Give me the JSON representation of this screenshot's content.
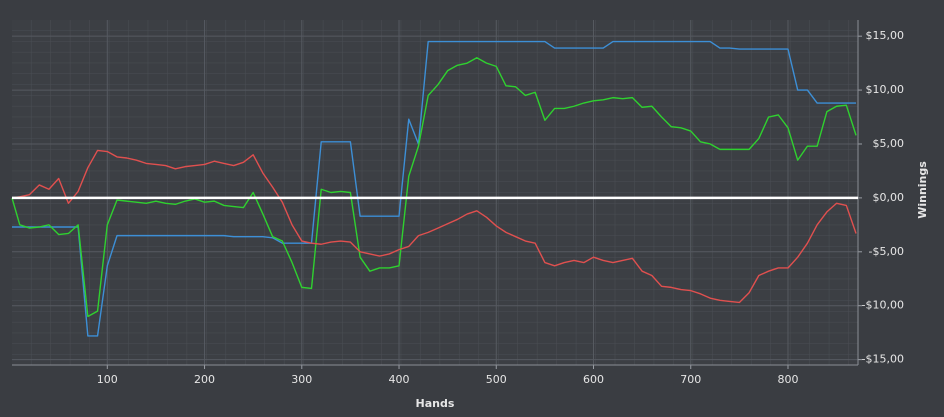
{
  "chart_data": {
    "type": "line",
    "x_label": "Hands",
    "y_label": "Winnings",
    "x": [
      2,
      10,
      20,
      30,
      40,
      50,
      60,
      70,
      80,
      90,
      100,
      110,
      120,
      130,
      140,
      150,
      160,
      170,
      180,
      190,
      200,
      210,
      220,
      230,
      240,
      250,
      260,
      270,
      280,
      290,
      300,
      310,
      320,
      330,
      340,
      350,
      360,
      370,
      380,
      390,
      400,
      410,
      420,
      430,
      440,
      450,
      460,
      470,
      480,
      490,
      500,
      510,
      520,
      530,
      540,
      550,
      560,
      570,
      580,
      590,
      600,
      610,
      620,
      630,
      640,
      650,
      660,
      670,
      680,
      690,
      700,
      710,
      720,
      730,
      740,
      750,
      760,
      770,
      780,
      790,
      800,
      810,
      820,
      830,
      840,
      850,
      860,
      870
    ],
    "series": [
      {
        "color": "#3d8fd6",
        "values": [
          -2.7,
          -2.7,
          -2.7,
          -2.7,
          -2.7,
          -2.7,
          -2.7,
          -2.7,
          -12.8,
          -12.8,
          -6.3,
          -3.5,
          -3.5,
          -3.5,
          -3.5,
          -3.5,
          -3.5,
          -3.5,
          -3.5,
          -3.5,
          -3.5,
          -3.5,
          -3.5,
          -3.6,
          -3.6,
          -3.6,
          -3.6,
          -3.7,
          -4.2,
          -4.2,
          -4.2,
          -4.2,
          5.2,
          5.2,
          5.2,
          5.2,
          -1.7,
          -1.7,
          -1.7,
          -1.7,
          -1.7,
          7.3,
          5.0,
          14.5,
          14.5,
          14.5,
          14.5,
          14.5,
          14.5,
          14.5,
          14.5,
          14.5,
          14.5,
          14.5,
          14.5,
          14.5,
          13.9,
          13.9,
          13.9,
          13.9,
          13.9,
          13.9,
          14.5,
          14.5,
          14.5,
          14.5,
          14.5,
          14.5,
          14.5,
          14.5,
          14.5,
          14.5,
          14.5,
          13.9,
          13.9,
          13.8,
          13.8,
          13.8,
          13.8,
          13.8,
          13.8,
          10.0,
          10.0,
          8.8,
          8.8,
          8.8,
          8.8,
          8.8
        ]
      },
      {
        "color": "#2fd12f",
        "values": [
          0,
          -2.5,
          -2.8,
          -2.7,
          -2.5,
          -3.4,
          -3.3,
          -2.5,
          -11,
          -10.5,
          -2.5,
          -0.2,
          -0.3,
          -0.4,
          -0.5,
          -0.3,
          -0.5,
          -0.6,
          -0.3,
          -0.1,
          -0.4,
          -0.3,
          -0.7,
          -0.8,
          -0.9,
          0.5,
          -1.5,
          -3.6,
          -4.0,
          -6.0,
          -8.3,
          -8.4,
          0.8,
          0.5,
          0.6,
          0.5,
          -5.5,
          -6.8,
          -6.5,
          -6.5,
          -6.3,
          2,
          4.8,
          9.5,
          10.5,
          11.8,
          12.3,
          12.5,
          13,
          12.5,
          12.2,
          10.4,
          10.3,
          9.5,
          9.8,
          7.2,
          8.3,
          8.3,
          8.5,
          8.8,
          9,
          9.1,
          9.3,
          9.2,
          9.3,
          8.4,
          8.5,
          7.5,
          6.6,
          6.5,
          6.2,
          5.2,
          5,
          4.5,
          4.5,
          4.5,
          4.5,
          5.5,
          7.5,
          7.7,
          6.5,
          3.5,
          4.8,
          4.8,
          8,
          8.5,
          8.6,
          5.8
        ]
      },
      {
        "color": "#e0504f",
        "values": [
          0,
          0.1,
          0.3,
          1.2,
          0.8,
          1.8,
          -0.5,
          0.6,
          2.8,
          4.4,
          4.3,
          3.8,
          3.7,
          3.5,
          3.2,
          3.1,
          3.0,
          2.7,
          2.9,
          3.0,
          3.1,
          3.4,
          3.2,
          3.0,
          3.3,
          4.0,
          2.3,
          1.0,
          -0.4,
          -2.5,
          -4.0,
          -4.2,
          -4.3,
          -4.1,
          -4.0,
          -4.1,
          -5.0,
          -5.2,
          -5.4,
          -5.2,
          -4.8,
          -4.5,
          -3.5,
          -3.2,
          -2.8,
          -2.4,
          -2.0,
          -1.5,
          -1.2,
          -1.8,
          -2.6,
          -3.2,
          -3.6,
          -4.0,
          -4.2,
          -6.0,
          -6.3,
          -6.0,
          -5.8,
          -6.0,
          -5.5,
          -5.8,
          -6.0,
          -5.8,
          -5.6,
          -6.8,
          -7.2,
          -8.2,
          -8.3,
          -8.5,
          -8.6,
          -8.9,
          -9.3,
          -9.5,
          -9.6,
          -9.7,
          -8.8,
          -7.2,
          -6.8,
          -6.5,
          -6.5,
          -5.5,
          -4.2,
          -2.5,
          -1.3,
          -0.5,
          -0.7,
          -3.3
        ]
      }
    ],
    "baseline": 0,
    "xlim": [
      2,
      872
    ],
    "ylim": [
      -15.5,
      16.5
    ],
    "xticks": [
      100,
      200,
      300,
      400,
      500,
      600,
      700,
      800
    ],
    "yticks": [
      {
        "value": -15,
        "label": "-$15,00"
      },
      {
        "value": -10,
        "label": "-$10,00"
      },
      {
        "value": -5,
        "label": "-$5,00"
      },
      {
        "value": 0,
        "label": "$0,00"
      },
      {
        "value": 5,
        "label": "$5,00"
      },
      {
        "value": 10,
        "label": "$10,00"
      },
      {
        "value": 15,
        "label": "$15,00"
      }
    ],
    "grid": true
  }
}
